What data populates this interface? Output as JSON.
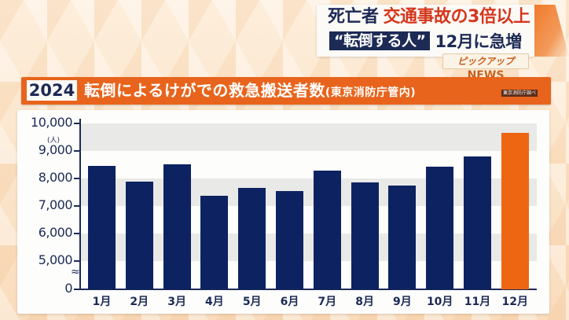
{
  "headline": {
    "line1_dark": "死亡者",
    "line1_red": "交通事故の3倍以上",
    "line2_tag": "“転倒する人”",
    "line2_rest": "12月に急増",
    "badge_pickup": "ピックアップ",
    "badge_news": "NEWS"
  },
  "title_bar": {
    "year": "2024",
    "title": "転倒によるけがでの救急搬送者数",
    "subtitle": "(東京消防庁管内)",
    "source": "東京消防庁調べ"
  },
  "colors": {
    "bar": "#0d2260",
    "highlight_bar": "#ee6512",
    "title_bar": "#e8641c",
    "text_navy": "#1c2a55",
    "headline_red": "#d6361c"
  },
  "chart_data": {
    "type": "bar",
    "title": "2024 転倒によるけがでの救急搬送者数(東京消防庁管内)",
    "source": "東京消防庁調べ",
    "xlabel": "",
    "ylabel": "(人)",
    "categories": [
      "1月",
      "2月",
      "3月",
      "4月",
      "5月",
      "6月",
      "7月",
      "8月",
      "9月",
      "10月",
      "11月",
      "12月"
    ],
    "values": [
      8460,
      7890,
      8510,
      7370,
      7660,
      7550,
      8290,
      7860,
      7750,
      8430,
      8800,
      9650
    ],
    "highlight_index": 11,
    "yticks": [
      "0",
      "5,000",
      "6,000",
      "7,000",
      "8,000",
      "9,000",
      "10,000"
    ],
    "ylim": [
      0,
      10000
    ],
    "axis_break": "between 0 and 5,000",
    "grid": "alternating gray bands",
    "legend": "none"
  }
}
